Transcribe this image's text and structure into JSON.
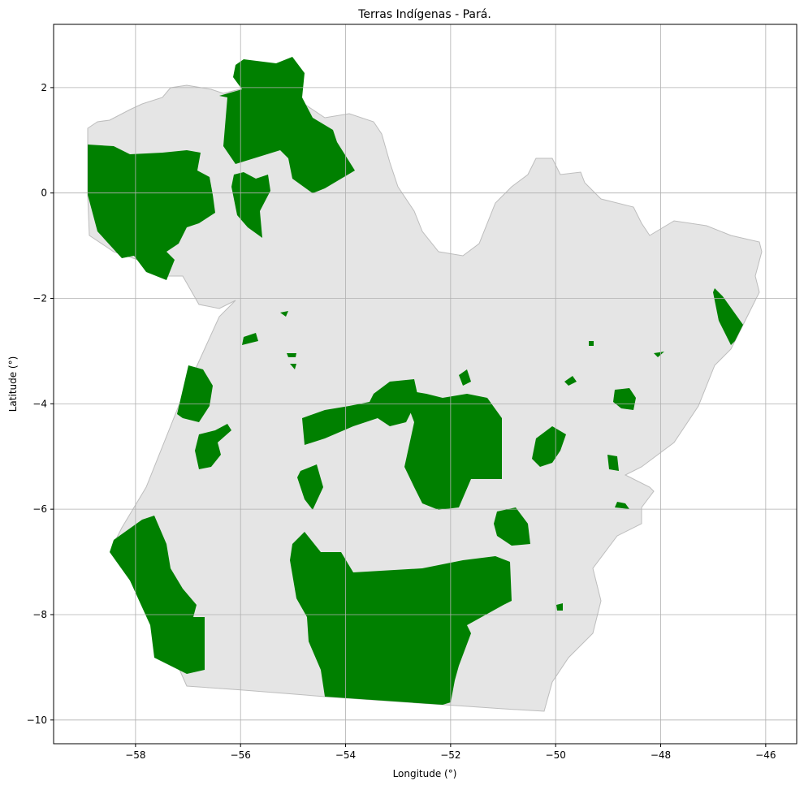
{
  "chart_data": {
    "type": "map",
    "title": "Terras Indígenas - Pará.",
    "x_label": "Longitude (°)",
    "y_label": "Latitude (°)",
    "xlim": [
      -59.56,
      -45.41
    ],
    "ylim": [
      -10.45,
      3.2
    ],
    "xticks": [
      {
        "value": -58,
        "label": "−58"
      },
      {
        "value": -56,
        "label": "−56"
      },
      {
        "value": -54,
        "label": "−54"
      },
      {
        "value": -52,
        "label": "−52"
      },
      {
        "value": -50,
        "label": "−50"
      },
      {
        "value": -48,
        "label": "−48"
      },
      {
        "value": -46,
        "label": "−46"
      }
    ],
    "yticks": [
      {
        "value": -10,
        "label": "−10"
      },
      {
        "value": -8,
        "label": "−8"
      },
      {
        "value": -6,
        "label": "−6"
      },
      {
        "value": -4,
        "label": "−4"
      },
      {
        "value": -2,
        "label": "−2"
      },
      0,
      2
    ],
    "grid": true
  }
}
